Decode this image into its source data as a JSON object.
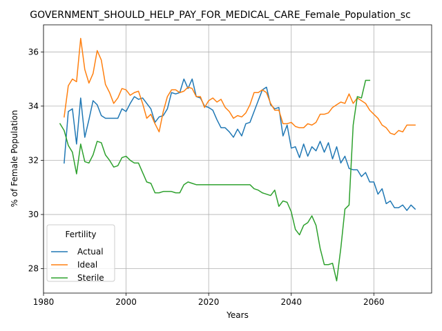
{
  "chart_data": {
    "type": "line",
    "title": "GOVERNMENT_SHOULD_HELP_PAY_FOR_MEDICAL_CARE_Female_Population_sc",
    "xlabel": "Years",
    "ylabel": "% of Female Population",
    "xlim": [
      1980,
      2074
    ],
    "ylim": [
      27.1,
      37.0
    ],
    "xticks": [
      1980,
      2000,
      2020,
      2040,
      2060
    ],
    "yticks": [
      28,
      30,
      32,
      34,
      36
    ],
    "grid": true,
    "legend": {
      "title": "Fertility",
      "placement": "lower-left"
    },
    "series": [
      {
        "name": "Actual",
        "color": "#1f77b4",
        "x": [
          1985,
          1986,
          1987,
          1988,
          1989,
          1990,
          1991,
          1992,
          1993,
          1994,
          1995,
          1996,
          1997,
          1998,
          1999,
          2000,
          2001,
          2002,
          2003,
          2004,
          2005,
          2006,
          2007,
          2008,
          2009,
          2010,
          2011,
          2012,
          2013,
          2014,
          2015,
          2016,
          2017,
          2018,
          2019,
          2020,
          2021,
          2022,
          2023,
          2024,
          2025,
          2026,
          2027,
          2028,
          2029,
          2030,
          2031,
          2032,
          2033,
          2034,
          2035,
          2036,
          2037,
          2038,
          2039,
          2040,
          2041,
          2042,
          2043,
          2044,
          2045,
          2046,
          2047,
          2048,
          2049,
          2050,
          2051,
          2052,
          2053,
          2054,
          2055,
          2056,
          2057,
          2058,
          2059,
          2060,
          2061,
          2062,
          2063,
          2064,
          2065,
          2066,
          2067,
          2068,
          2069,
          2070
        ],
        "values": [
          31.9,
          33.8,
          33.9,
          32.6,
          34.3,
          32.85,
          33.5,
          34.2,
          34.05,
          33.65,
          33.55,
          33.55,
          33.55,
          33.55,
          33.9,
          33.8,
          34.1,
          34.35,
          34.25,
          34.3,
          34.1,
          33.9,
          33.4,
          33.6,
          33.65,
          33.9,
          34.5,
          34.45,
          34.5,
          35.0,
          34.65,
          35.0,
          34.35,
          34.3,
          34.0,
          33.95,
          33.85,
          33.5,
          33.2,
          33.2,
          33.05,
          32.85,
          33.15,
          32.9,
          33.35,
          33.4,
          33.8,
          34.2,
          34.6,
          34.7,
          34.05,
          33.9,
          33.95,
          32.9,
          33.3,
          32.45,
          32.5,
          32.1,
          32.6,
          32.15,
          32.5,
          32.35,
          32.7,
          32.3,
          32.65,
          32.05,
          32.5,
          31.9,
          32.15,
          31.7,
          31.65,
          31.65,
          31.4,
          31.55,
          31.2,
          31.2,
          30.75,
          30.95,
          30.4,
          30.5,
          30.25,
          30.25,
          30.35,
          30.15,
          30.35,
          30.2
        ]
      },
      {
        "name": "Ideal",
        "color": "#ff7f0e",
        "x": [
          1985,
          1986,
          1987,
          1988,
          1989,
          1990,
          1991,
          1992,
          1993,
          1994,
          1995,
          1996,
          1997,
          1998,
          1999,
          2000,
          2001,
          2002,
          2003,
          2004,
          2005,
          2006,
          2007,
          2008,
          2009,
          2010,
          2011,
          2012,
          2013,
          2014,
          2015,
          2016,
          2017,
          2018,
          2019,
          2020,
          2021,
          2022,
          2023,
          2024,
          2025,
          2026,
          2027,
          2028,
          2029,
          2030,
          2031,
          2032,
          2033,
          2034,
          2035,
          2036,
          2037,
          2038,
          2039,
          2040,
          2041,
          2042,
          2043,
          2044,
          2045,
          2046,
          2047,
          2048,
          2049,
          2050,
          2051,
          2052,
          2053,
          2054,
          2055,
          2056,
          2057,
          2058,
          2059,
          2060,
          2061,
          2062,
          2063,
          2064,
          2065,
          2066,
          2067,
          2068,
          2069,
          2070
        ],
        "values": [
          33.6,
          34.75,
          35.0,
          34.9,
          36.5,
          35.35,
          34.85,
          35.2,
          36.05,
          35.7,
          34.8,
          34.5,
          34.1,
          34.3,
          34.65,
          34.6,
          34.4,
          34.5,
          34.55,
          34.1,
          33.55,
          33.7,
          33.35,
          33.05,
          33.8,
          34.35,
          34.6,
          34.6,
          34.5,
          34.55,
          34.7,
          34.65,
          34.35,
          34.35,
          33.95,
          34.2,
          34.3,
          34.15,
          34.25,
          33.95,
          33.8,
          33.55,
          33.65,
          33.6,
          33.75,
          34.05,
          34.5,
          34.5,
          34.6,
          34.5,
          34.1,
          33.85,
          33.85,
          33.35,
          33.35,
          33.4,
          33.25,
          33.2,
          33.2,
          33.35,
          33.3,
          33.4,
          33.7,
          33.7,
          33.75,
          33.95,
          34.05,
          34.15,
          34.1,
          34.45,
          34.1,
          34.3,
          34.2,
          34.1,
          33.85,
          33.7,
          33.55,
          33.3,
          33.2,
          33.0,
          32.95,
          33.1,
          33.05,
          33.3,
          33.3,
          33.3
        ]
      },
      {
        "name": "Sterile",
        "color": "#2ca02c",
        "x": [
          1984,
          1985,
          1986,
          1987,
          1988,
          1989,
          1990,
          1991,
          1992,
          1993,
          1994,
          1995,
          1996,
          1997,
          1998,
          1999,
          2000,
          2001,
          2002,
          2003,
          2004,
          2005,
          2006,
          2007,
          2008,
          2009,
          2010,
          2011,
          2012,
          2013,
          2014,
          2015,
          2016,
          2017,
          2018,
          2019,
          2020,
          2021,
          2022,
          2023,
          2024,
          2025,
          2026,
          2027,
          2028,
          2029,
          2030,
          2031,
          2032,
          2033,
          2034,
          2035,
          2036,
          2037,
          2038,
          2039,
          2040,
          2041,
          2042,
          2043,
          2044,
          2045,
          2046,
          2047,
          2048,
          2049,
          2050,
          2051,
          2052,
          2053,
          2054,
          2055,
          2056,
          2057,
          2058,
          2059
        ],
        "values": [
          33.35,
          33.1,
          32.55,
          32.3,
          31.5,
          32.6,
          31.95,
          31.9,
          32.2,
          32.7,
          32.65,
          32.2,
          32.0,
          31.75,
          31.8,
          32.1,
          32.15,
          32.0,
          31.9,
          31.9,
          31.55,
          31.2,
          31.15,
          30.8,
          30.8,
          30.85,
          30.85,
          30.85,
          30.8,
          30.8,
          31.1,
          31.2,
          31.15,
          31.1,
          31.1,
          31.1,
          31.1,
          31.1,
          31.1,
          31.1,
          31.1,
          31.1,
          31.1,
          31.1,
          31.1,
          31.1,
          31.1,
          30.95,
          30.9,
          30.8,
          30.75,
          30.7,
          30.9,
          30.3,
          30.5,
          30.45,
          30.1,
          29.45,
          29.25,
          29.6,
          29.7,
          29.95,
          29.6,
          28.75,
          28.15,
          28.15,
          28.2,
          27.55,
          28.75,
          30.2,
          30.35,
          33.3,
          34.35,
          34.3,
          34.95,
          34.95
        ]
      }
    ]
  }
}
